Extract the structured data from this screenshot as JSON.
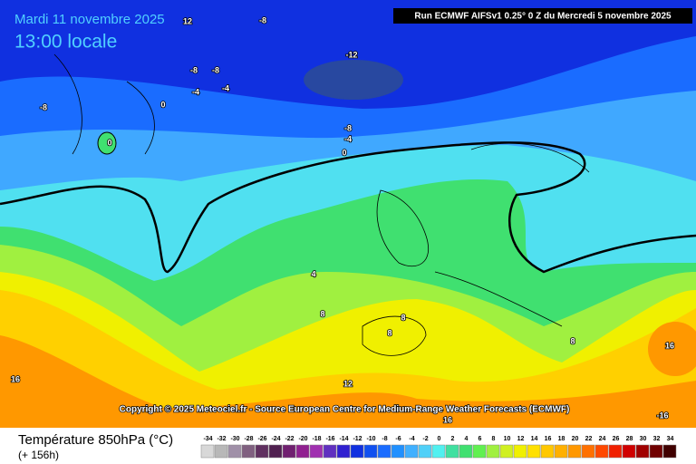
{
  "header": {
    "title": "Mardi 11 novembre 2025",
    "time": "13:00 locale",
    "run": "Run ECMWF AIFSv1 0.25° 0 Z du Mercredi 5 novembre 2025"
  },
  "copyright": "Copyright © 2025 Meteociel.fr - Source European Centre for Medium-Range Weather Forecasts (ECMWF)",
  "contour_labels": [
    "12",
    "-8",
    "-12",
    "-8",
    "-8",
    "-4",
    "-4",
    "0",
    "0",
    "-8",
    "-8",
    "-4",
    "0",
    "4",
    "8",
    "8",
    "8",
    "8",
    "12",
    "16",
    "16",
    "16",
    "-16"
  ],
  "footer": {
    "title": "Température 850hPa (°C)",
    "lead": "(+ 156h)"
  },
  "legend": {
    "values": [
      -34,
      -32,
      -30,
      -28,
      -26,
      -24,
      -22,
      -20,
      -18,
      -16,
      -14,
      -12,
      -10,
      -8,
      -6,
      -4,
      -2,
      0,
      2,
      4,
      6,
      8,
      10,
      12,
      14,
      16,
      18,
      20,
      22,
      24,
      26,
      28,
      30,
      32,
      34
    ],
    "colors": [
      "#d8d8d8",
      "#b8b8b8",
      "#a090a8",
      "#806080",
      "#603060",
      "#502050",
      "#702070",
      "#902090",
      "#a030b0",
      "#6030c0",
      "#3020d0",
      "#1030e0",
      "#1050f0",
      "#1a6cff",
      "#2090ff",
      "#40b0ff",
      "#50d0f8",
      "#50f0f0",
      "#40e0a0",
      "#40e070",
      "#60f050",
      "#a0f040",
      "#d0f020",
      "#f0f000",
      "#ffe000",
      "#ffc800",
      "#ffb000",
      "#ff9800",
      "#ff7000",
      "#ff4800",
      "#f02000",
      "#d00000",
      "#a00000",
      "#700000",
      "#400000"
    ]
  }
}
